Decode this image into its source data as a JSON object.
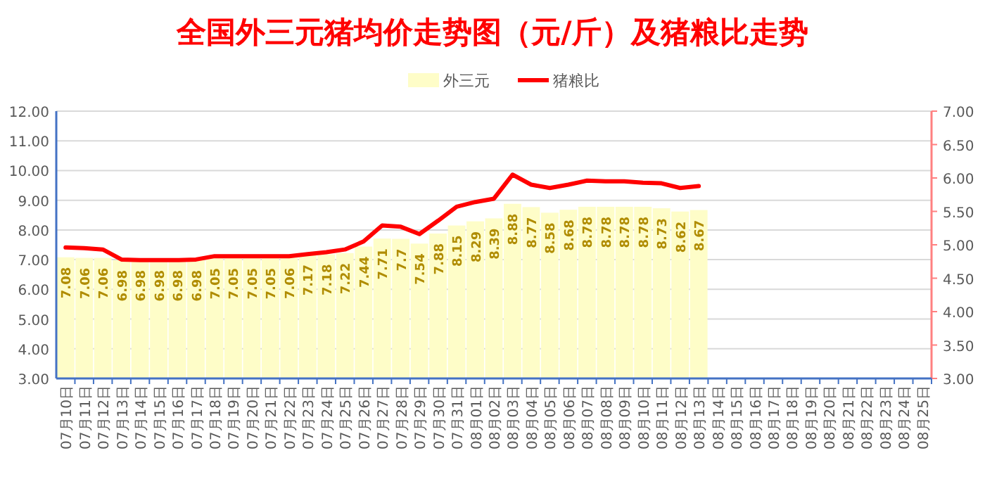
{
  "chart_data": {
    "type": "bar",
    "title": "全国外三元猪均价走势图（元/斤）及猪粮比走势",
    "categories": [
      "07月10日",
      "07月11日",
      "07月12日",
      "07月13日",
      "07月14日",
      "07月15日",
      "07月16日",
      "07月17日",
      "07月18日",
      "07月19日",
      "07月20日",
      "07月21日",
      "07月22日",
      "07月23日",
      "07月24日",
      "07月25日",
      "07月26日",
      "07月27日",
      "07月28日",
      "07月29日",
      "07月30日",
      "07月31日",
      "08月01日",
      "08月02日",
      "08月03日",
      "08月04日",
      "08月05日",
      "08月06日",
      "08月07日",
      "08月08日",
      "08月09日",
      "08月10日",
      "08月11日",
      "08月12日",
      "08月13日",
      "08月14日",
      "08月15日",
      "08月16日",
      "08月17日",
      "08月18日",
      "08月19日",
      "08月20日",
      "08月21日",
      "08月22日",
      "08月23日",
      "08月24日",
      "08月25日"
    ],
    "series": [
      {
        "name": "外三元",
        "color": "#fefdc8",
        "values": [
          7.08,
          7.06,
          7.06,
          6.98,
          6.98,
          6.98,
          6.98,
          6.98,
          7.05,
          7.05,
          7.05,
          7.05,
          7.06,
          7.17,
          7.18,
          7.22,
          7.44,
          7.71,
          7.7,
          7.54,
          7.88,
          8.15,
          8.29,
          8.39,
          8.88,
          8.77,
          8.58,
          8.68,
          8.78,
          8.78,
          8.78,
          8.78,
          8.73,
          8.62,
          8.67,
          null,
          null,
          null,
          null,
          null,
          null,
          null,
          null,
          null,
          null,
          null,
          null
        ],
        "value_labels": [
          "7.08",
          "7.06",
          "7.06",
          "6.98",
          "6.98",
          "6.98",
          "6.98",
          "6.98",
          "7.05",
          "7.05",
          "7.05",
          "7.05",
          "7.06",
          "7.17",
          "7.18",
          "7.22",
          "7.44",
          "7.71",
          "7.7",
          "7.54",
          "7.88",
          "8.15",
          "8.29",
          "8.39",
          "8.88",
          "8.77",
          "8.58",
          "8.68",
          "8.78",
          "8.78",
          "8.78",
          "8.78",
          "8.73",
          "8.62",
          "8.67",
          null,
          null,
          null,
          null,
          null,
          null,
          null,
          null,
          null,
          null,
          null,
          null
        ]
      },
      {
        "name": "猪粮比",
        "type": "line",
        "axis": "y2",
        "color": "#ff0000",
        "values": [
          4.96,
          4.95,
          4.93,
          4.78,
          4.77,
          4.77,
          4.77,
          4.78,
          4.83,
          4.83,
          4.83,
          4.83,
          4.83,
          4.86,
          4.89,
          4.93,
          5.05,
          5.29,
          5.27,
          5.16,
          5.36,
          5.57,
          5.64,
          5.69,
          6.05,
          5.9,
          5.85,
          5.9,
          5.96,
          5.95,
          5.95,
          5.93,
          5.92,
          5.85,
          5.88,
          null,
          null,
          null,
          null,
          null,
          null,
          null,
          null,
          null,
          null,
          null,
          null
        ]
      }
    ],
    "ylim": [
      3,
      12
    ],
    "yticks": [
      {
        "value": 3,
        "label": "3.00"
      },
      {
        "value": 4,
        "label": "4.00"
      },
      {
        "value": 5,
        "label": "5.00"
      },
      {
        "value": 6,
        "label": "6.00"
      },
      {
        "value": 7,
        "label": "7.00"
      },
      {
        "value": 8,
        "label": "8.00"
      },
      {
        "value": 9,
        "label": "9.00"
      },
      {
        "value": 10,
        "label": "10.00"
      },
      {
        "value": 11,
        "label": "11.00"
      },
      {
        "value": 12,
        "label": "12.00"
      }
    ],
    "y2lim": [
      3,
      7
    ],
    "y2ticks": [
      {
        "value": 3,
        "label": "3.00"
      },
      {
        "value": 3.5,
        "label": "3.50"
      },
      {
        "value": 4,
        "label": "4.00"
      },
      {
        "value": 4.5,
        "label": "4.50"
      },
      {
        "value": 5,
        "label": "5.00"
      },
      {
        "value": 5.5,
        "label": "5.50"
      },
      {
        "value": 6,
        "label": "6.00"
      },
      {
        "value": 6.5,
        "label": "6.50"
      },
      {
        "value": 7,
        "label": "7.00"
      }
    ],
    "grid": "y",
    "legend": "top",
    "marker": "none",
    "line_style": "solid"
  }
}
